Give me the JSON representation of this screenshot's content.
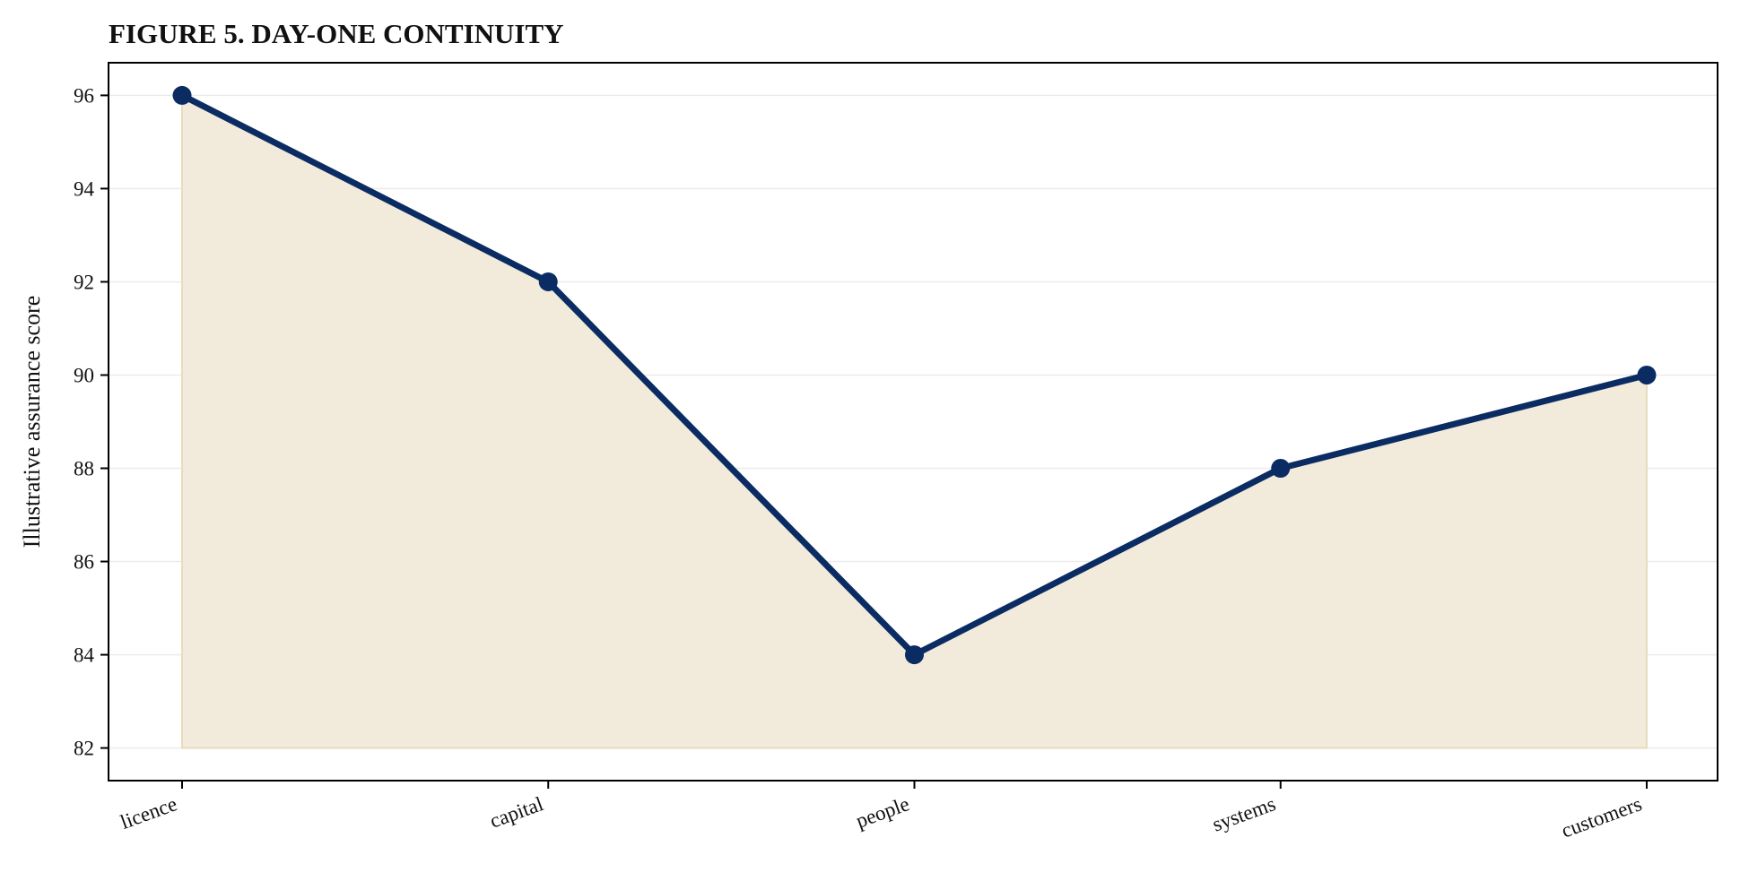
{
  "chart_data": {
    "type": "area",
    "title": "FIGURE 5. DAY-ONE CONTINUITY",
    "xlabel": "",
    "ylabel": "Illustrative assurance score",
    "categories": [
      "licence",
      "capital",
      "people",
      "systems",
      "customers"
    ],
    "values": [
      96,
      92,
      84,
      88,
      90
    ],
    "fill_baseline": 82,
    "yticks": [
      82,
      84,
      86,
      88,
      90,
      92,
      94,
      96
    ],
    "ylim": [
      81.3,
      96.7
    ],
    "grid": "horizontal",
    "legend": "none",
    "colors": {
      "line": "#0b2c63",
      "fill": "#f2ebdb",
      "fill_edge": "#e8dcbd",
      "grid": "#ebebeb",
      "axis": "#000000"
    }
  }
}
